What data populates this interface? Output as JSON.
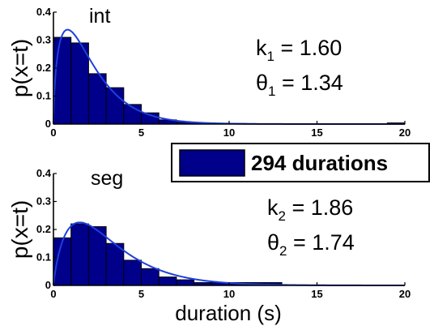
{
  "colors": {
    "bar_fill": "#00008B",
    "bar_edge": "#000000",
    "curve": "#1F3FDC",
    "axis": "#000000"
  },
  "legend": {
    "label": "294 durations",
    "placement": "center-right"
  },
  "shared": {
    "ylabel": "p(x=t)",
    "xlabel": "duration (s)",
    "xlim": [
      0,
      20
    ],
    "ylim": [
      0,
      0.4
    ],
    "xticks": [
      "0",
      "5",
      "10",
      "15",
      "20"
    ],
    "yticks": [
      "0",
      "0.1",
      "0.2",
      "0.3",
      "0.4"
    ]
  },
  "chart_data": [
    {
      "type": "bar",
      "title": "int",
      "param_k_name": "k",
      "param_k_sub": "1",
      "param_k_value": " = 1.60",
      "param_theta_name": "θ",
      "param_theta_sub": "1",
      "param_theta_value": " = 1.34",
      "bin_width": 1,
      "bin_starts": [
        0,
        1,
        2,
        3,
        4,
        5,
        6,
        7,
        8,
        9,
        10,
        11,
        12,
        13,
        14,
        15,
        16,
        17,
        18,
        19
      ],
      "values": [
        0.31,
        0.29,
        0.18,
        0.13,
        0.07,
        0.04,
        0.015,
        0.007,
        0.004,
        0.003,
        0.002,
        0.001,
        0.001,
        0.001,
        0.001,
        0.001,
        0.001,
        0.001,
        0.001,
        0.004
      ],
      "curve": {
        "name": "gamma fit",
        "shape": 1.6,
        "scale": 1.34
      },
      "xlim": [
        0,
        20
      ],
      "ylim": [
        0,
        0.4
      ],
      "grid": false
    },
    {
      "type": "bar",
      "title": "seg",
      "param_k_name": "k",
      "param_k_sub": "2",
      "param_k_value": " = 1.86",
      "param_theta_name": "θ",
      "param_theta_sub": "2",
      "param_theta_value": " = 1.74",
      "bin_width": 1,
      "bin_starts": [
        0,
        1,
        2,
        3,
        4,
        5,
        6,
        7,
        8,
        9,
        10,
        11,
        12,
        13,
        14,
        15,
        16,
        17,
        18,
        19
      ],
      "values": [
        0.17,
        0.22,
        0.21,
        0.15,
        0.09,
        0.06,
        0.03,
        0.02,
        0.01,
        0.01,
        0.01,
        0.01,
        0.01,
        0,
        0,
        0,
        0,
        0,
        0,
        0
      ],
      "curve": {
        "name": "gamma fit",
        "shape": 1.86,
        "scale": 1.74
      },
      "xlim": [
        0,
        20
      ],
      "ylim": [
        0,
        0.4
      ],
      "grid": false
    }
  ]
}
